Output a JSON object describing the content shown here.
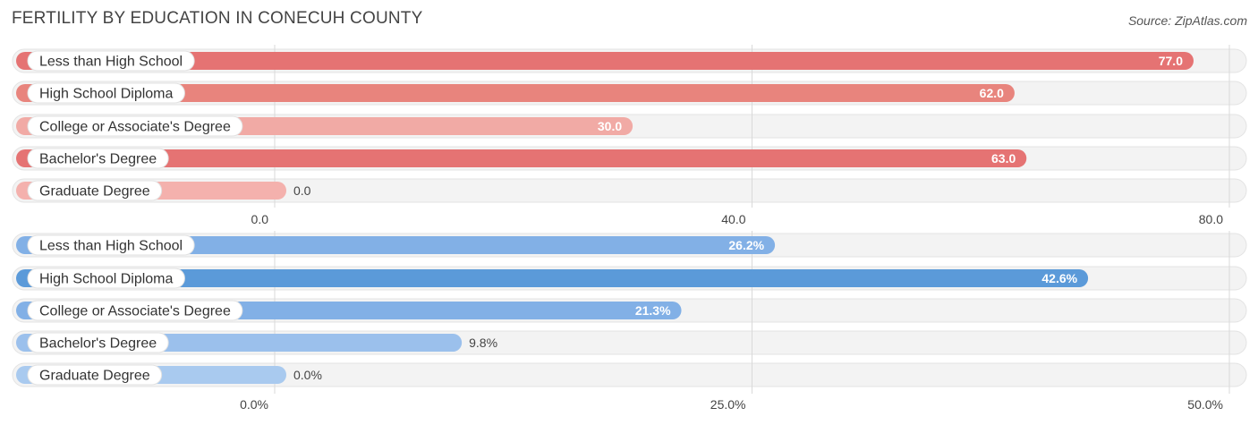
{
  "title": "Fertility by Education in Conecuh County",
  "source": "Source: ZipAtlas.com",
  "chart_data": [
    {
      "type": "bar",
      "orientation": "horizontal",
      "categories": [
        "Less than High School",
        "High School Diploma",
        "College or Associate's Degree",
        "Bachelor's Degree",
        "Graduate Degree"
      ],
      "values": [
        77.0,
        62.0,
        30.0,
        63.0,
        0.0
      ],
      "value_labels": [
        "77.0",
        "62.0",
        "30.0",
        "63.0",
        "0.0"
      ],
      "xlim": [
        0,
        80
      ],
      "ticks": [
        0,
        40,
        80
      ],
      "tick_labels": [
        "0.0",
        "40.0",
        "80.0"
      ],
      "grid": true,
      "colors": [
        "#e57373",
        "#e8847d",
        "#f1aaa5",
        "#e57373",
        "#f4b1ad"
      ]
    },
    {
      "type": "bar",
      "orientation": "horizontal",
      "categories": [
        "Less than High School",
        "High School Diploma",
        "College or Associate's Degree",
        "Bachelor's Degree",
        "Graduate Degree"
      ],
      "values": [
        26.2,
        42.6,
        21.3,
        9.8,
        0.0
      ],
      "value_labels": [
        "26.2%",
        "42.6%",
        "21.3%",
        "9.8%",
        "0.0%"
      ],
      "xlim": [
        0,
        50
      ],
      "ticks": [
        0,
        25,
        50
      ],
      "tick_labels": [
        "0.0%",
        "25.0%",
        "50.0%"
      ],
      "grid": true,
      "colors": [
        "#82b0e6",
        "#5b9ad9",
        "#82b0e6",
        "#9bc0ec",
        "#a9caef"
      ]
    }
  ]
}
